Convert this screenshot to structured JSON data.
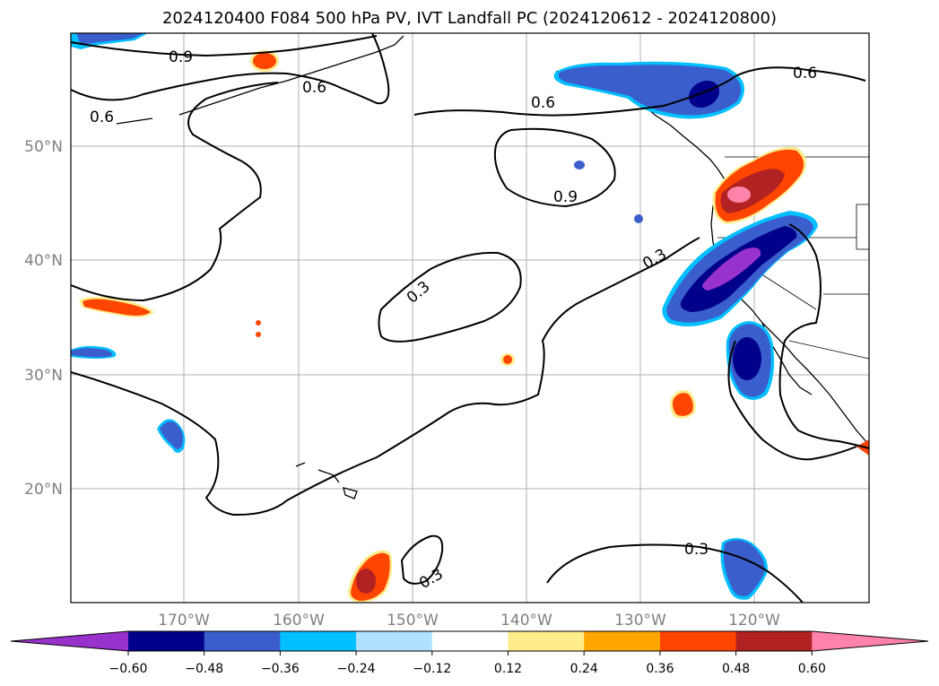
{
  "title": "2024120400 F084 500 hPa PV, IVT Landfall PC (2024120612 - 2024120800)",
  "lat_labels": [
    "50°N",
    "40°N",
    "30°N",
    "20°N"
  ],
  "lon_labels": [
    "170°W",
    "160°W",
    "150°W",
    "140°W",
    "130°W",
    "120°W"
  ],
  "colorbar": {
    "ticks": [
      "−0.60",
      "−0.48",
      "−0.36",
      "−0.24",
      "−0.12",
      "0.12",
      "0.24",
      "0.36",
      "0.48",
      "0.60"
    ],
    "colors": [
      "#9932cc",
      "#00008b",
      "#3a5fcd",
      "#00bfff",
      "#b0e2ff",
      "#ffffff",
      "#ffec8b",
      "#ffa500",
      "#ff4500",
      "#b22222",
      "#ff82ab"
    ]
  },
  "contour_labels": [
    "0.9",
    "0.6",
    "0.6",
    "0.6",
    "0.9",
    "0.6",
    "0.3",
    "0.3",
    "0.3",
    "0.3"
  ]
}
